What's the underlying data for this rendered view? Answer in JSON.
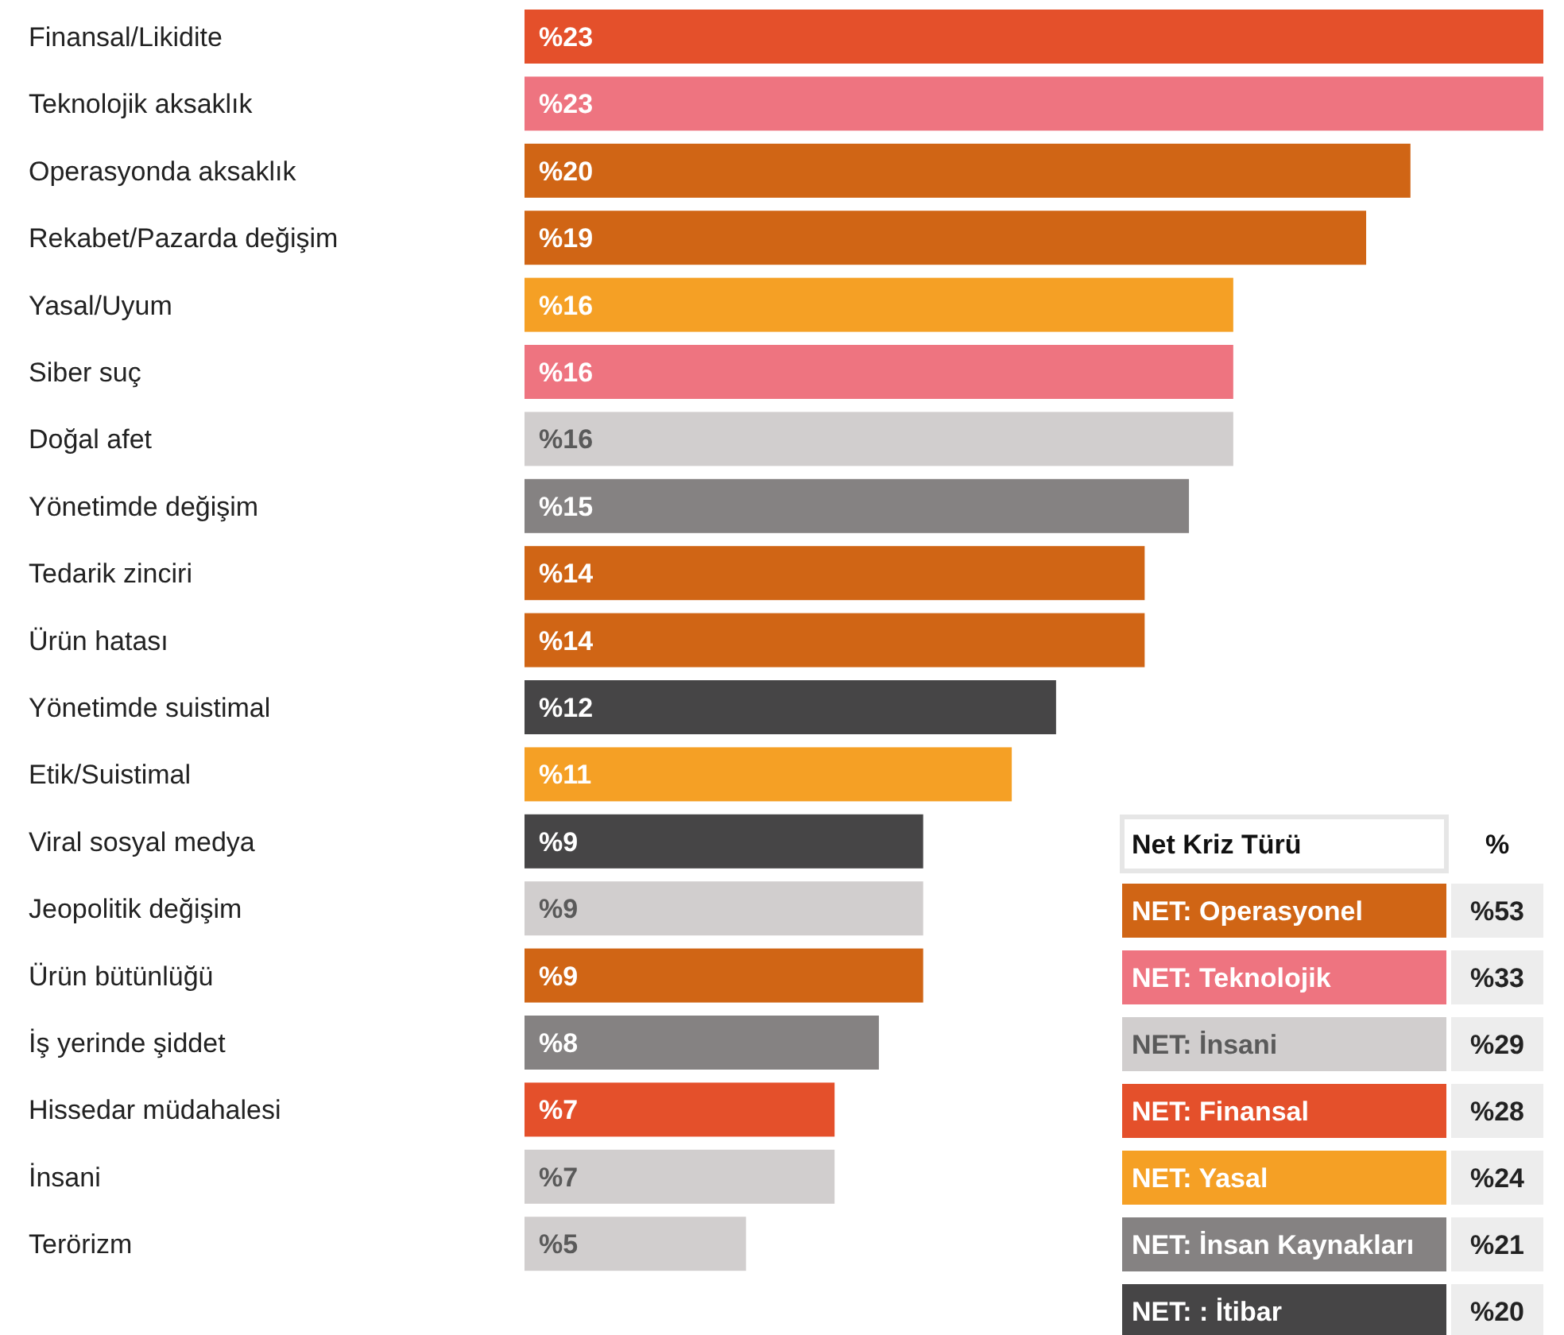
{
  "chart_data": [
    {
      "type": "bar",
      "orientation": "horizontal",
      "categories": [
        "Finansal/Likidite",
        "Teknolojik aksaklık",
        "Operasyonda aksaklık",
        "Rekabet/Pazarda değişim",
        "Yasal/Uyum",
        "Siber suç",
        "Doğal afet",
        "Yönetimde değişim",
        "Tedarik zinciri",
        "Ürün hatası",
        "Yönetimde suistimal",
        "Etik/Suistimal",
        "Viral sosyal medya",
        "Jeopolitik değişim",
        "Ürün bütünlüğü",
        "İş yerinde şiddet",
        "Hissedar müdahalesi",
        "İnsani",
        "Terörizm"
      ],
      "values": [
        23,
        23,
        20,
        19,
        16,
        16,
        16,
        15,
        14,
        14,
        12,
        11,
        9,
        9,
        9,
        8,
        7,
        7,
        5
      ],
      "value_labels": [
        "%23",
        "%23",
        "%20",
        "%19",
        "%16",
        "%16",
        "%16",
        "%15",
        "%14",
        "%14",
        "%12",
        "%11",
        "%9",
        "%9",
        "%9",
        "%8",
        "%7",
        "%7",
        "%5"
      ],
      "colors": [
        "#e4502b",
        "#ee7480",
        "#d06515",
        "#d06515",
        "#f5a025",
        "#ee7480",
        "#d1cece",
        "#858282",
        "#d06515",
        "#d06515",
        "#464546",
        "#f5a025",
        "#464546",
        "#d1cece",
        "#d06515",
        "#858282",
        "#e4502b",
        "#d1cece",
        "#d1cece"
      ]
    },
    {
      "type": "other",
      "title": "Net Kriz Türü",
      "ylabel": "%",
      "categories": [
        "NET: Operasyonel",
        "NET: Teknolojik",
        "NET: İnsani",
        "NET: Finansal",
        "NET: Yasal",
        "NET: İnsan Kaynakları",
        "NET: : İtibar"
      ],
      "value_labels": [
        "%53",
        "%33",
        "%29",
        "%28",
        "%24",
        "%21",
        "%20"
      ],
      "colors": [
        "#d06515",
        "#ee7480",
        "#d1cece",
        "#e4502b",
        "#f5a025",
        "#858282",
        "#464546"
      ]
    }
  ]
}
